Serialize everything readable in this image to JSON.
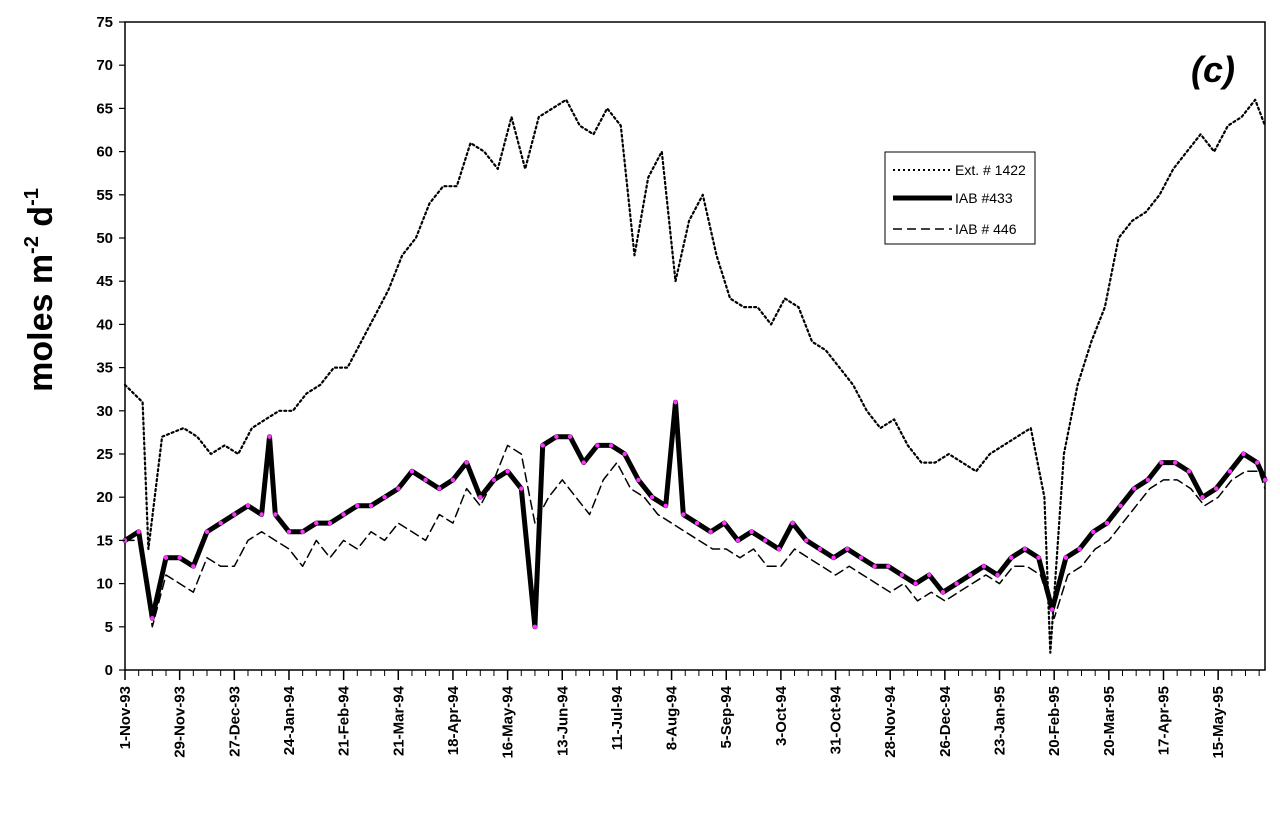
{
  "chart_data": {
    "type": "line",
    "panel_label": "(c)",
    "ylabel": "moles m-2 d-1",
    "ylabel_parts": {
      "pre": "moles m",
      "sup1": "-2",
      "mid": " d",
      "sup2": "-1"
    },
    "ylim": [
      0,
      75
    ],
    "yticks": [
      0,
      5,
      10,
      15,
      20,
      25,
      30,
      35,
      40,
      45,
      50,
      55,
      60,
      65,
      70,
      75
    ],
    "x_range": [
      "1993-11-01",
      "1995-06-08"
    ],
    "xtick_labels": [
      "1-Nov-93",
      "29-Nov-93",
      "27-Dec-93",
      "24-Jan-94",
      "21-Feb-94",
      "21-Mar-94",
      "18-Apr-94",
      "16-May-94",
      "13-Jun-94",
      "11-Jul-94",
      "8-Aug-94",
      "5-Sep-94",
      "3-Oct-94",
      "31-Oct-94",
      "28-Nov-94",
      "26-Dec-94",
      "23-Jan-95",
      "20-Feb-95",
      "20-Mar-95",
      "17-Apr-95",
      "15-May-95"
    ],
    "xtick_dates": [
      "1993-11-01",
      "1993-11-29",
      "1993-12-27",
      "1994-01-24",
      "1994-02-21",
      "1994-03-21",
      "1994-04-18",
      "1994-05-16",
      "1994-06-13",
      "1994-07-11",
      "1994-08-08",
      "1994-09-05",
      "1994-10-03",
      "1994-10-31",
      "1994-11-28",
      "1994-12-26",
      "1995-01-23",
      "1995-02-20",
      "1995-03-20",
      "1995-04-17",
      "1995-05-15"
    ],
    "grid": false,
    "legend_position": "top-right",
    "series": [
      {
        "name": "Ext. # 1422",
        "style": "dotted",
        "color": "#000000",
        "points": [
          [
            "1993-11-01",
            33
          ],
          [
            "1993-11-10",
            31
          ],
          [
            "1993-11-13",
            14
          ],
          [
            "1993-11-20",
            27
          ],
          [
            "1993-12-01",
            28
          ],
          [
            "1993-12-08",
            27
          ],
          [
            "1993-12-15",
            25
          ],
          [
            "1993-12-22",
            26
          ],
          [
            "1993-12-29",
            25
          ],
          [
            "1994-01-05",
            28
          ],
          [
            "1994-01-12",
            29
          ],
          [
            "1994-01-19",
            30
          ],
          [
            "1994-01-26",
            30
          ],
          [
            "1994-02-02",
            32
          ],
          [
            "1994-02-09",
            33
          ],
          [
            "1994-02-16",
            35
          ],
          [
            "1994-02-23",
            35
          ],
          [
            "1994-03-02",
            38
          ],
          [
            "1994-03-09",
            41
          ],
          [
            "1994-03-16",
            44
          ],
          [
            "1994-03-23",
            48
          ],
          [
            "1994-03-30",
            50
          ],
          [
            "1994-04-06",
            54
          ],
          [
            "1994-04-13",
            56
          ],
          [
            "1994-04-20",
            56
          ],
          [
            "1994-04-27",
            61
          ],
          [
            "1994-05-04",
            60
          ],
          [
            "1994-05-11",
            58
          ],
          [
            "1994-05-18",
            64
          ],
          [
            "1994-05-25",
            58
          ],
          [
            "1994-06-01",
            64
          ],
          [
            "1994-06-08",
            65
          ],
          [
            "1994-06-15",
            66
          ],
          [
            "1994-06-22",
            63
          ],
          [
            "1994-06-29",
            62
          ],
          [
            "1994-07-06",
            65
          ],
          [
            "1994-07-13",
            63
          ],
          [
            "1994-07-20",
            48
          ],
          [
            "1994-07-27",
            57
          ],
          [
            "1994-08-03",
            60
          ],
          [
            "1994-08-10",
            45
          ],
          [
            "1994-08-17",
            52
          ],
          [
            "1994-08-24",
            55
          ],
          [
            "1994-08-31",
            48
          ],
          [
            "1994-09-07",
            43
          ],
          [
            "1994-09-14",
            42
          ],
          [
            "1994-09-21",
            42
          ],
          [
            "1994-09-28",
            40
          ],
          [
            "1994-10-05",
            43
          ],
          [
            "1994-10-12",
            42
          ],
          [
            "1994-10-19",
            38
          ],
          [
            "1994-10-26",
            37
          ],
          [
            "1994-11-02",
            35
          ],
          [
            "1994-11-09",
            33
          ],
          [
            "1994-11-16",
            30
          ],
          [
            "1994-11-23",
            28
          ],
          [
            "1994-11-30",
            29
          ],
          [
            "1994-12-07",
            26
          ],
          [
            "1994-12-14",
            24
          ],
          [
            "1994-12-21",
            24
          ],
          [
            "1994-12-28",
            25
          ],
          [
            "1995-01-04",
            24
          ],
          [
            "1995-01-11",
            23
          ],
          [
            "1995-01-18",
            25
          ],
          [
            "1995-01-25",
            26
          ],
          [
            "1995-02-01",
            27
          ],
          [
            "1995-02-08",
            28
          ],
          [
            "1995-02-15",
            20
          ],
          [
            "1995-02-18",
            2
          ],
          [
            "1995-02-25",
            25
          ],
          [
            "1995-03-04",
            33
          ],
          [
            "1995-03-11",
            38
          ],
          [
            "1995-03-18",
            42
          ],
          [
            "1995-03-25",
            50
          ],
          [
            "1995-04-01",
            52
          ],
          [
            "1995-04-08",
            53
          ],
          [
            "1995-04-15",
            55
          ],
          [
            "1995-04-22",
            58
          ],
          [
            "1995-04-29",
            60
          ],
          [
            "1995-05-06",
            62
          ],
          [
            "1995-05-13",
            60
          ],
          [
            "1995-05-20",
            63
          ],
          [
            "1995-05-27",
            64
          ],
          [
            "1995-06-03",
            66
          ],
          [
            "1995-06-08",
            63
          ]
        ]
      },
      {
        "name": "IAB #433",
        "style": "thick",
        "color": "#000000",
        "points": [
          [
            "1993-11-01",
            15
          ],
          [
            "1993-11-08",
            16
          ],
          [
            "1993-11-15",
            6
          ],
          [
            "1993-11-22",
            13
          ],
          [
            "1993-11-29",
            13
          ],
          [
            "1993-12-06",
            12
          ],
          [
            "1993-12-13",
            16
          ],
          [
            "1993-12-20",
            17
          ],
          [
            "1993-12-27",
            18
          ],
          [
            "1994-01-03",
            19
          ],
          [
            "1994-01-10",
            18
          ],
          [
            "1994-01-14",
            27
          ],
          [
            "1994-01-17",
            18
          ],
          [
            "1994-01-24",
            16
          ],
          [
            "1994-01-31",
            16
          ],
          [
            "1994-02-07",
            17
          ],
          [
            "1994-02-14",
            17
          ],
          [
            "1994-02-21",
            18
          ],
          [
            "1994-02-28",
            19
          ],
          [
            "1994-03-07",
            19
          ],
          [
            "1994-03-14",
            20
          ],
          [
            "1994-03-21",
            21
          ],
          [
            "1994-03-28",
            23
          ],
          [
            "1994-04-04",
            22
          ],
          [
            "1994-04-11",
            21
          ],
          [
            "1994-04-18",
            22
          ],
          [
            "1994-04-25",
            24
          ],
          [
            "1994-05-02",
            20
          ],
          [
            "1994-05-09",
            22
          ],
          [
            "1994-05-16",
            23
          ],
          [
            "1994-05-23",
            21
          ],
          [
            "1994-05-30",
            5
          ],
          [
            "1994-06-03",
            26
          ],
          [
            "1994-06-10",
            27
          ],
          [
            "1994-06-17",
            27
          ],
          [
            "1994-06-24",
            24
          ],
          [
            "1994-07-01",
            26
          ],
          [
            "1994-07-08",
            26
          ],
          [
            "1994-07-15",
            25
          ],
          [
            "1994-07-22",
            22
          ],
          [
            "1994-07-29",
            20
          ],
          [
            "1994-08-05",
            19
          ],
          [
            "1994-08-10",
            31
          ],
          [
            "1994-08-14",
            18
          ],
          [
            "1994-08-21",
            17
          ],
          [
            "1994-08-28",
            16
          ],
          [
            "1994-09-04",
            17
          ],
          [
            "1994-09-11",
            15
          ],
          [
            "1994-09-18",
            16
          ],
          [
            "1994-09-25",
            15
          ],
          [
            "1994-10-02",
            14
          ],
          [
            "1994-10-09",
            17
          ],
          [
            "1994-10-16",
            15
          ],
          [
            "1994-10-23",
            14
          ],
          [
            "1994-10-30",
            13
          ],
          [
            "1994-11-06",
            14
          ],
          [
            "1994-11-13",
            13
          ],
          [
            "1994-11-20",
            12
          ],
          [
            "1994-11-27",
            12
          ],
          [
            "1994-12-04",
            11
          ],
          [
            "1994-12-11",
            10
          ],
          [
            "1994-12-18",
            11
          ],
          [
            "1994-12-25",
            9
          ],
          [
            "1995-01-01",
            10
          ],
          [
            "1995-01-08",
            11
          ],
          [
            "1995-01-15",
            12
          ],
          [
            "1995-01-22",
            11
          ],
          [
            "1995-01-29",
            13
          ],
          [
            "1995-02-05",
            14
          ],
          [
            "1995-02-12",
            13
          ],
          [
            "1995-02-19",
            7
          ],
          [
            "1995-02-26",
            13
          ],
          [
            "1995-03-05",
            14
          ],
          [
            "1995-03-12",
            16
          ],
          [
            "1995-03-19",
            17
          ],
          [
            "1995-03-26",
            19
          ],
          [
            "1995-04-02",
            21
          ],
          [
            "1995-04-09",
            22
          ],
          [
            "1995-04-16",
            24
          ],
          [
            "1995-04-23",
            24
          ],
          [
            "1995-04-30",
            23
          ],
          [
            "1995-05-07",
            20
          ],
          [
            "1995-05-14",
            21
          ],
          [
            "1995-05-21",
            23
          ],
          [
            "1995-05-28",
            25
          ],
          [
            "1995-06-04",
            24
          ],
          [
            "1995-06-08",
            22
          ]
        ]
      },
      {
        "name": "IAB # 446",
        "style": "dashed",
        "color": "#000000",
        "points": [
          [
            "1993-11-01",
            15
          ],
          [
            "1993-11-08",
            15
          ],
          [
            "1993-11-15",
            5
          ],
          [
            "1993-11-22",
            11
          ],
          [
            "1993-11-29",
            10
          ],
          [
            "1993-12-06",
            9
          ],
          [
            "1993-12-13",
            13
          ],
          [
            "1993-12-20",
            12
          ],
          [
            "1993-12-27",
            12
          ],
          [
            "1994-01-03",
            15
          ],
          [
            "1994-01-10",
            16
          ],
          [
            "1994-01-17",
            15
          ],
          [
            "1994-01-24",
            14
          ],
          [
            "1994-01-31",
            12
          ],
          [
            "1994-02-07",
            15
          ],
          [
            "1994-02-14",
            13
          ],
          [
            "1994-02-21",
            15
          ],
          [
            "1994-02-28",
            14
          ],
          [
            "1994-03-07",
            16
          ],
          [
            "1994-03-14",
            15
          ],
          [
            "1994-03-21",
            17
          ],
          [
            "1994-03-28",
            16
          ],
          [
            "1994-04-04",
            15
          ],
          [
            "1994-04-11",
            18
          ],
          [
            "1994-04-18",
            17
          ],
          [
            "1994-04-25",
            21
          ],
          [
            "1994-05-02",
            19
          ],
          [
            "1994-05-09",
            22
          ],
          [
            "1994-05-16",
            26
          ],
          [
            "1994-05-23",
            25
          ],
          [
            "1994-05-30",
            17
          ],
          [
            "1994-06-06",
            20
          ],
          [
            "1994-06-13",
            22
          ],
          [
            "1994-06-20",
            20
          ],
          [
            "1994-06-27",
            18
          ],
          [
            "1994-07-04",
            22
          ],
          [
            "1994-07-11",
            24
          ],
          [
            "1994-07-18",
            21
          ],
          [
            "1994-07-25",
            20
          ],
          [
            "1994-08-01",
            18
          ],
          [
            "1994-08-08",
            17
          ],
          [
            "1994-08-15",
            16
          ],
          [
            "1994-08-22",
            15
          ],
          [
            "1994-08-29",
            14
          ],
          [
            "1994-09-05",
            14
          ],
          [
            "1994-09-12",
            13
          ],
          [
            "1994-09-19",
            14
          ],
          [
            "1994-09-26",
            12
          ],
          [
            "1994-10-03",
            12
          ],
          [
            "1994-10-10",
            14
          ],
          [
            "1994-10-17",
            13
          ],
          [
            "1994-10-24",
            12
          ],
          [
            "1994-10-31",
            11
          ],
          [
            "1994-11-07",
            12
          ],
          [
            "1994-11-14",
            11
          ],
          [
            "1994-11-21",
            10
          ],
          [
            "1994-11-28",
            9
          ],
          [
            "1994-12-05",
            10
          ],
          [
            "1994-12-12",
            8
          ],
          [
            "1994-12-19",
            9
          ],
          [
            "1994-12-26",
            8
          ],
          [
            "1995-01-02",
            9
          ],
          [
            "1995-01-09",
            10
          ],
          [
            "1995-01-16",
            11
          ],
          [
            "1995-01-23",
            10
          ],
          [
            "1995-01-30",
            12
          ],
          [
            "1995-02-06",
            12
          ],
          [
            "1995-02-13",
            11
          ],
          [
            "1995-02-20",
            6
          ],
          [
            "1995-02-27",
            11
          ],
          [
            "1995-03-06",
            12
          ],
          [
            "1995-03-13",
            14
          ],
          [
            "1995-03-20",
            15
          ],
          [
            "1995-03-27",
            17
          ],
          [
            "1995-04-03",
            19
          ],
          [
            "1995-04-10",
            21
          ],
          [
            "1995-04-17",
            22
          ],
          [
            "1995-04-24",
            22
          ],
          [
            "1995-05-01",
            21
          ],
          [
            "1995-05-08",
            19
          ],
          [
            "1995-05-15",
            20
          ],
          [
            "1995-05-22",
            22
          ],
          [
            "1995-05-29",
            23
          ],
          [
            "1995-06-05",
            23
          ],
          [
            "1995-06-08",
            21
          ]
        ]
      }
    ]
  }
}
